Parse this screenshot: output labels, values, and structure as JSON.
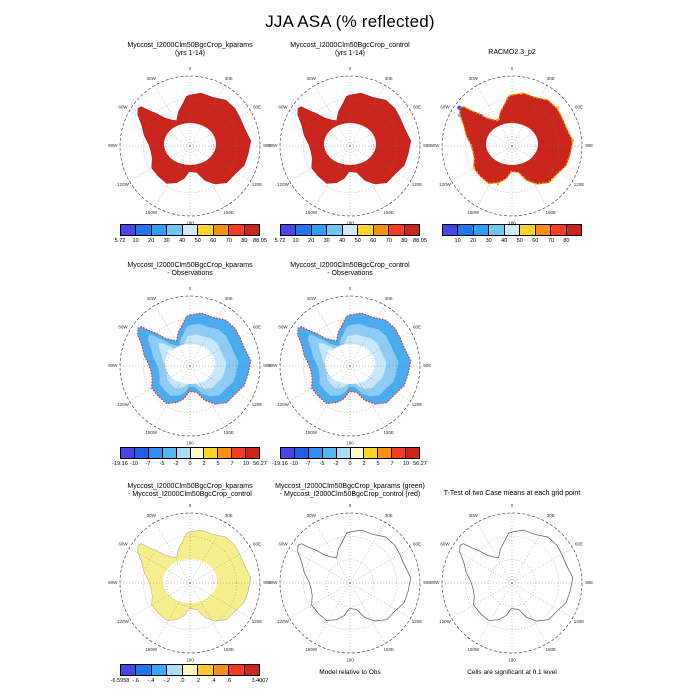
{
  "title": "JJA ASA (% reflected)",
  "map_labels": [
    "0",
    "30E",
    "60E",
    "90E",
    "120E",
    "150E",
    "180",
    "150W",
    "120W",
    "90W",
    "60W",
    "30W"
  ],
  "colors": {
    "map_red_fill": "#C9251C",
    "map_blue_fill": "#4AACEE",
    "map_yellow_fill": "#F5EE8C",
    "coast_speck_red": "#E03020",
    "coast_speck_orange": "#FF9E00",
    "coast_speck_gold": "#FFD21C",
    "coast_speck_blue": "#3A5FE0"
  },
  "panels": [
    {
      "name": "kparams-absolute",
      "title_lines": [
        "Myccost_I2000Clm50BgcCrop_kparams",
        "(yrs 1-14)"
      ],
      "style": "red",
      "colorbar": "abs"
    },
    {
      "name": "control-absolute",
      "title_lines": [
        "Myccost_I2000Clm50BgcCrop_control",
        "(yrs 1-14)"
      ],
      "style": "red",
      "colorbar": "abs"
    },
    {
      "name": "racmo-reference",
      "title_lines": [
        "RACMO2.3_p2"
      ],
      "style": "racmo",
      "colorbar": "racmo"
    },
    {
      "name": "kparams-minus-observations",
      "title_lines": [
        "Myccost_I2000Clm50BgcCrop_kparams",
        "- Observations"
      ],
      "style": "bluediff",
      "colorbar": "diff"
    },
    {
      "name": "control-minus-observations",
      "title_lines": [
        "Myccost_I2000Clm50BgcCrop_control",
        "- Observations"
      ],
      "style": "bluediff",
      "colorbar": "diff"
    },
    {
      "name": "kparams-minus-control",
      "title_lines": [
        "Myccost_I2000Clm50BgcCrop_kparams",
        "- Myccost_I2000Clm50BgcCrop_control"
      ],
      "style": "yellow",
      "colorbar": "casediff"
    },
    {
      "name": "contour-comparison",
      "title_lines": [
        "Myccost_I2000Clm50BgcCrop_kparams (green)",
        "- Myccost_I2000Clm50BgcCrop_control (red)"
      ],
      "style": "outline",
      "caption": "Model relative to Obs"
    },
    {
      "name": "t-test",
      "title_lines": [
        "T-Test of two Case means at each grid point"
      ],
      "style": "outline",
      "caption": "Cells are significant at 0.1 level"
    }
  ],
  "colorbars": {
    "abs": {
      "cells": [
        "#4646E8",
        "#2277F0",
        "#2FA0FA",
        "#6CC6F6",
        "#CFEAF9",
        "#FFD52B",
        "#FF8E12",
        "#FB3A24",
        "#CB241C"
      ],
      "labels": [
        "10",
        "20",
        "30",
        "40",
        "50",
        "60",
        "70",
        "80"
      ],
      "min": "5.72",
      "max": "88.05"
    },
    "racmo": {
      "cells": [
        "#4646E8",
        "#2277F0",
        "#2FA0FA",
        "#6CC6F6",
        "#CFEAF9",
        "#FFD52B",
        "#FF8E12",
        "#FB3A24",
        "#CB241C"
      ],
      "labels": [
        "10",
        "20",
        "30",
        "40",
        "50",
        "60",
        "70",
        "80"
      ]
    },
    "diff": {
      "cells": [
        "#4646E8",
        "#1E5FE8",
        "#2E8EF8",
        "#55B5F2",
        "#A8DBF6",
        "#FEF9C9",
        "#FFD52B",
        "#FF8E12",
        "#FB3A24",
        "#CB241C"
      ],
      "labels": [
        "-10",
        "-7",
        "-5",
        "-2",
        "0",
        "2",
        "5",
        "7",
        "10"
      ],
      "min": "-19.16",
      "max": "56.27"
    },
    "casediff": {
      "cells": [
        "#4646E8",
        "#2277F0",
        "#38A8F8",
        "#AEDCF6",
        "#FDF7C0",
        "#FFC82E",
        "#FF8E15",
        "#F93822",
        "#CB241C"
      ],
      "labels": [
        "-.6",
        "-.4",
        "-.2",
        ".0",
        ".2",
        ".4",
        ".6"
      ],
      "min": "-6.5958",
      "max": "3.4007"
    }
  },
  "chart_data": [
    {
      "type": "heatmap",
      "subtype": "south-polar-stereographic-map",
      "title": "Myccost_I2000Clm50BgcCrop_kparams (yrs 1-14)",
      "region": "Antarctica",
      "levels": [
        10,
        20,
        30,
        40,
        50,
        60,
        70,
        80
      ],
      "data_min": 5.72,
      "data_max": 88.05,
      "units": "% reflected",
      "season": "JJA",
      "fill": "all-red-high-albedo",
      "no-data-center": "polar night hole"
    },
    {
      "type": "heatmap",
      "subtype": "south-polar-stereographic-map",
      "title": "Myccost_I2000Clm50BgcCrop_control (yrs 1-14)",
      "region": "Antarctica",
      "levels": [
        10,
        20,
        30,
        40,
        50,
        60,
        70,
        80
      ],
      "data_min": 5.72,
      "data_max": 88.05,
      "units": "% reflected",
      "season": "JJA",
      "fill": "all-red-high-albedo",
      "no-data-center": "polar night hole"
    },
    {
      "type": "heatmap",
      "subtype": "south-polar-stereographic-map",
      "title": "RACMO2.3_p2",
      "region": "Antarctica",
      "levels": [
        10,
        20,
        30,
        40,
        50,
        60,
        70,
        80
      ],
      "units": "% reflected",
      "season": "JJA",
      "fill": "red-with-orange-blue-coastal-specks"
    },
    {
      "type": "heatmap",
      "subtype": "south-polar-stereographic-map",
      "title": "Myccost_I2000Clm50BgcCrop_kparams - Observations",
      "region": "Antarctica",
      "levels": [
        -10,
        -7,
        -5,
        -2,
        0,
        2,
        5,
        7,
        10
      ],
      "data_min": -19.16,
      "data_max": 56.27,
      "units": "% reflected difference",
      "fill": "blue-negative-bias-red-coast"
    },
    {
      "type": "heatmap",
      "subtype": "south-polar-stereographic-map",
      "title": "Myccost_I2000Clm50BgcCrop_control - Observations",
      "region": "Antarctica",
      "levels": [
        -10,
        -7,
        -5,
        -2,
        0,
        2,
        5,
        7,
        10
      ],
      "data_min": -19.16,
      "data_max": 56.27,
      "units": "% reflected difference",
      "fill": "blue-negative-bias-red-coast"
    },
    {
      "type": "heatmap",
      "subtype": "south-polar-stereographic-map",
      "title": "Myccost_I2000Clm50BgcCrop_kparams - Myccost_I2000Clm50BgcCrop_control",
      "region": "Antarctica",
      "levels": [
        -0.6,
        -0.4,
        -0.2,
        0,
        0.2,
        0.4,
        0.6
      ],
      "data_min": -6.5958,
      "data_max": 3.4007,
      "units": "% reflected difference",
      "fill": "pale-yellow-near-zero"
    },
    {
      "type": "map",
      "subtype": "contour-outline",
      "title": "Myccost_I2000Clm50BgcCrop_kparams (green) - Myccost_I2000Clm50BgcCrop_control (red)",
      "region": "Antarctica",
      "caption": "Model relative to Obs"
    },
    {
      "type": "map",
      "subtype": "contour-outline",
      "title": "T-Test of two Case means at each grid point",
      "region": "Antarctica",
      "caption": "Cells are significant at 0.1 level"
    }
  ]
}
